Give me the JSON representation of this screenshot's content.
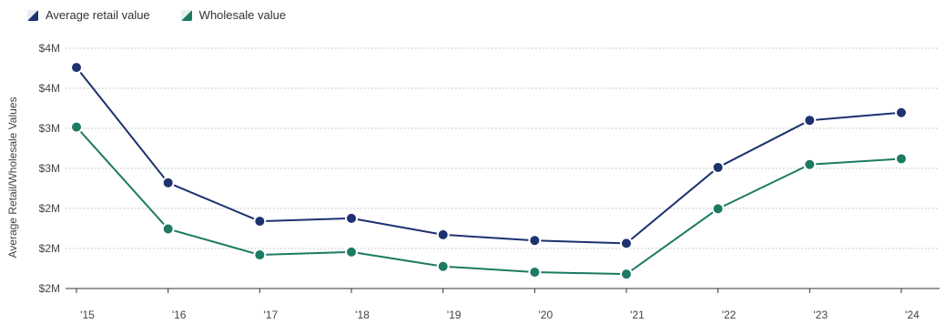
{
  "colors": {
    "retail": "#1e3170",
    "wholesale": "#1d7a63",
    "grid": "#bbbbbb",
    "axis": "#333333"
  },
  "chart_data": {
    "type": "line",
    "x": [
      "'15",
      "'16",
      "'17",
      "'18",
      "'19",
      "'20",
      "'21",
      "'22",
      "'23",
      "'24"
    ],
    "ylabel": "Average Retail/Wholesale Values",
    "y_tick_labels": [
      "$4M",
      "$4M",
      "$3M",
      "$3M",
      "$2M",
      "$2M",
      "$2M"
    ],
    "ylim": [
      1.5,
      4.0
    ],
    "grid": true,
    "legend_position": "top-left",
    "series": [
      {
        "name": "Average retail value",
        "color_key": "retail",
        "values": [
          3.8,
          2.6,
          2.2,
          2.23,
          2.06,
          2.0,
          1.97,
          2.76,
          3.25,
          3.33
        ]
      },
      {
        "name": "Wholesale value",
        "color_key": "wholesale",
        "values": [
          3.18,
          2.12,
          1.85,
          1.88,
          1.73,
          1.67,
          1.65,
          2.33,
          2.79,
          2.85
        ]
      }
    ]
  }
}
